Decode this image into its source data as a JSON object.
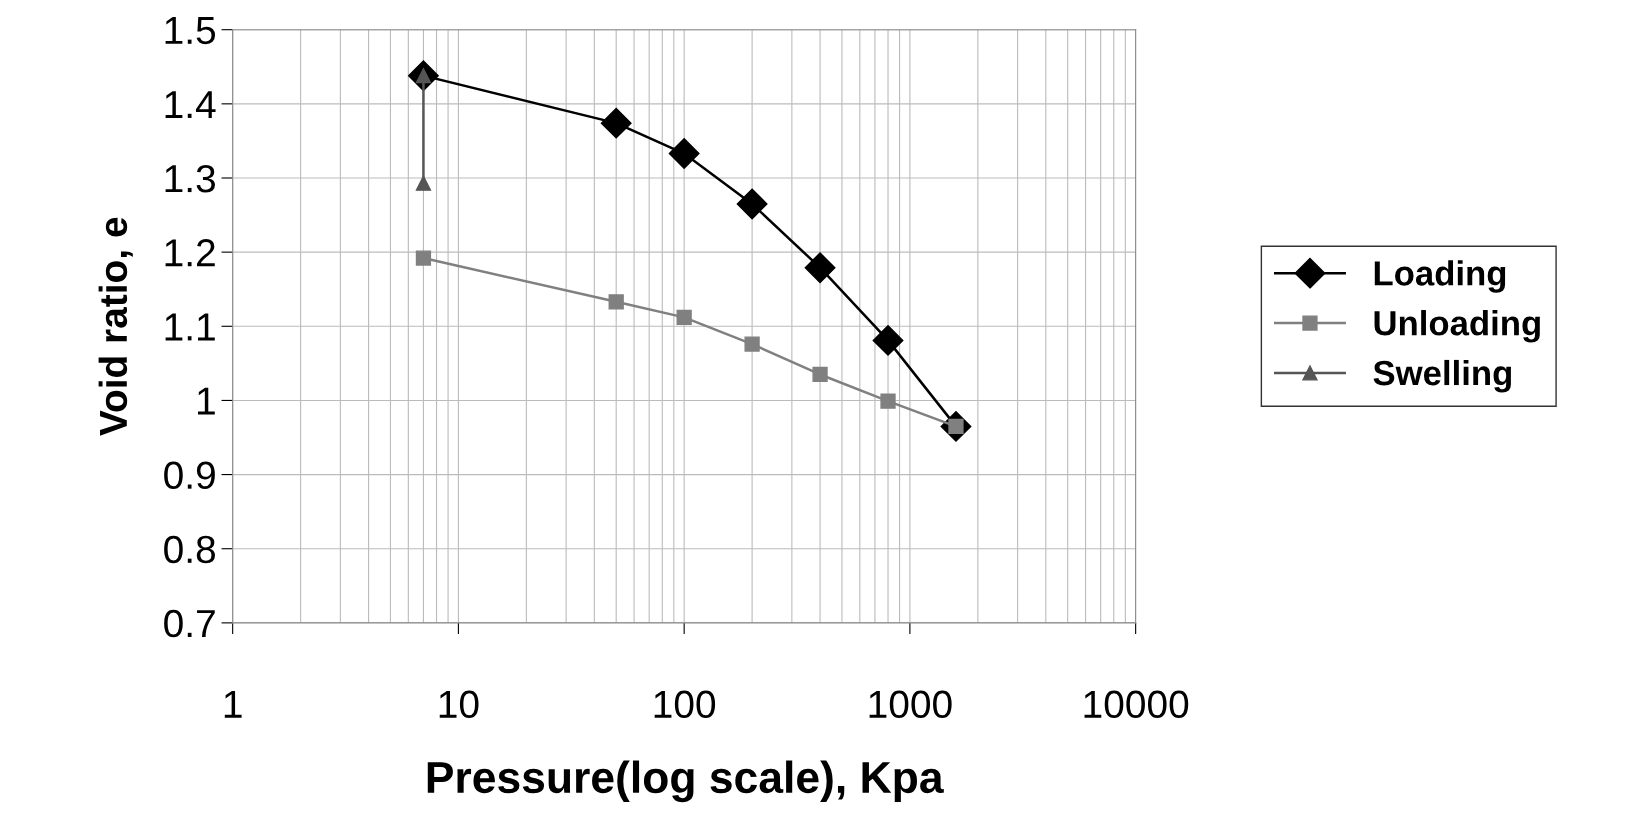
{
  "chart_data": {
    "type": "line",
    "xlabel": "Pressure(log scale), Kpa",
    "ylabel": "Void ratio, e",
    "log": "x",
    "grid": true,
    "legend": "right",
    "line_style": "solid",
    "xlim": [
      1,
      10000
    ],
    "xticks": [
      1,
      10,
      100,
      1000,
      10000
    ],
    "ylim": [
      0.7,
      1.5
    ],
    "yticks": [
      {
        "value": 0.7,
        "label": "0.7"
      },
      {
        "value": 0.8,
        "label": "0.8"
      },
      {
        "value": 0.9,
        "label": "0.9"
      },
      {
        "value": 1.0,
        "label": "1"
      },
      {
        "value": 1.1,
        "label": "1.1"
      },
      {
        "value": 1.2,
        "label": "1.2"
      },
      {
        "value": 1.3,
        "label": "1.3"
      },
      {
        "value": 1.4,
        "label": "1.4"
      },
      {
        "value": 1.5,
        "label": "1.5"
      }
    ],
    "series": [
      {
        "name": "Loading",
        "color": "#000000",
        "marker": "diamond",
        "x": [
          7,
          50,
          100,
          200,
          400,
          800,
          1600
        ],
        "values": [
          1.438,
          1.374,
          1.333,
          1.265,
          1.179,
          1.081,
          0.965
        ]
      },
      {
        "name": "Unloading",
        "color": "#808080",
        "marker": "square",
        "x": [
          7,
          50,
          100,
          200,
          400,
          800,
          1600
        ],
        "values": [
          1.192,
          1.133,
          1.112,
          1.076,
          1.035,
          0.999,
          0.965
        ]
      },
      {
        "name": "Swelling",
        "color": "#555555",
        "marker": "triangle",
        "x": [
          7,
          7
        ],
        "values": [
          1.293,
          1.438
        ]
      }
    ]
  }
}
